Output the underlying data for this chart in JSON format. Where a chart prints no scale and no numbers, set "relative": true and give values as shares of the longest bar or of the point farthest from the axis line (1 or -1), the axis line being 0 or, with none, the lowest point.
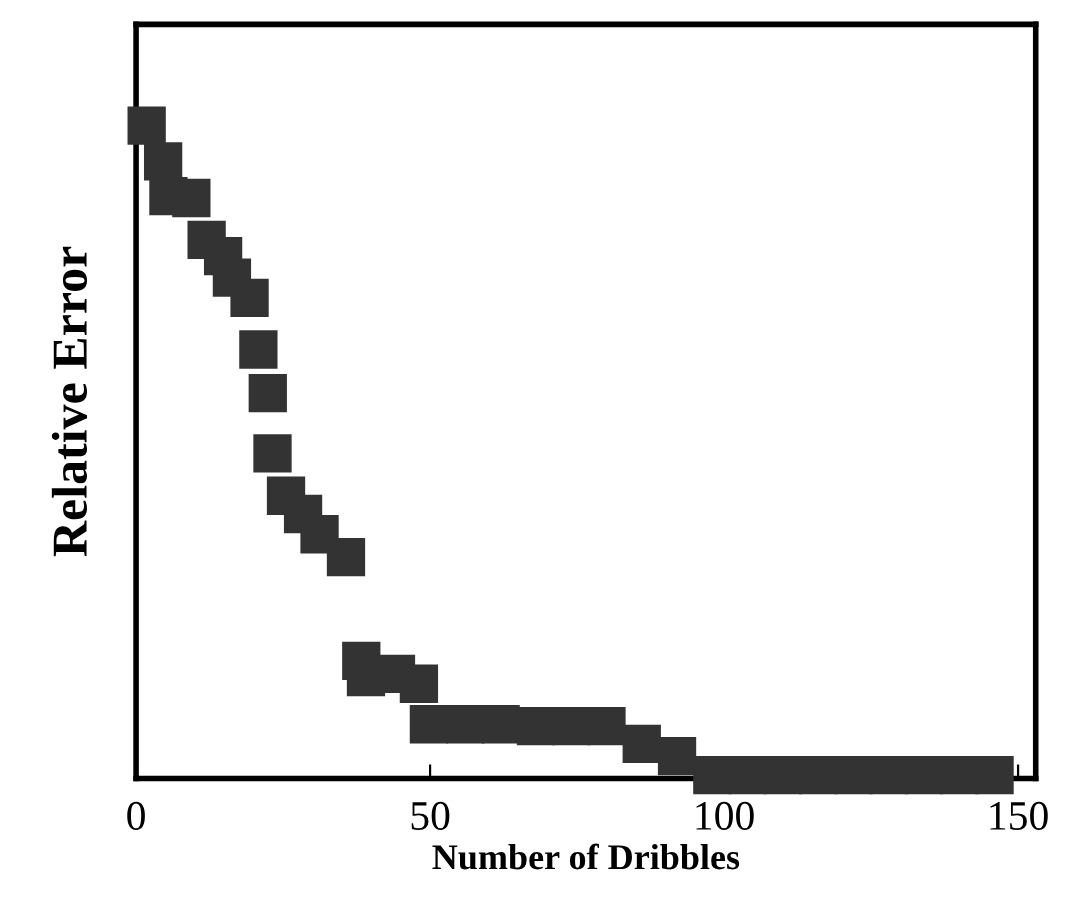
{
  "chart_data": {
    "type": "scatter",
    "xlabel": "Number of Dribbles",
    "ylabel": "Relative Error",
    "relative": true,
    "marker": "square",
    "grid": false,
    "legend": false,
    "xlim": [
      0,
      153
    ],
    "xticks": [
      0,
      50,
      100,
      150
    ],
    "series": [
      {
        "color": "#333333",
        "x": [
          1.8,
          4.6,
          5.5,
          9.4,
          12,
          14.8,
          16.3,
          19.3,
          20.8,
          22.4,
          23.2,
          25.5,
          28.4,
          31.2,
          35.7,
          38.3,
          39.1,
          44.2,
          48.1,
          49.8,
          56,
          62,
          68,
          74,
          80,
          86,
          92,
          98,
          104,
          110,
          116,
          122,
          128,
          134,
          140,
          146
        ],
        "values": [
          1,
          0.945,
          0.892,
          0.889,
          0.825,
          0.8,
          0.767,
          0.736,
          0.657,
          0.59,
          0.498,
          0.433,
          0.405,
          0.374,
          0.339,
          0.18,
          0.155,
          0.16,
          0.145,
          0.083,
          0.083,
          0.083,
          0.08,
          0.08,
          0.08,
          0.053,
          0.034,
          0.005,
          0.005,
          0.005,
          0.005,
          0.005,
          0.005,
          0.005,
          0.005,
          0.005
        ]
      }
    ]
  }
}
